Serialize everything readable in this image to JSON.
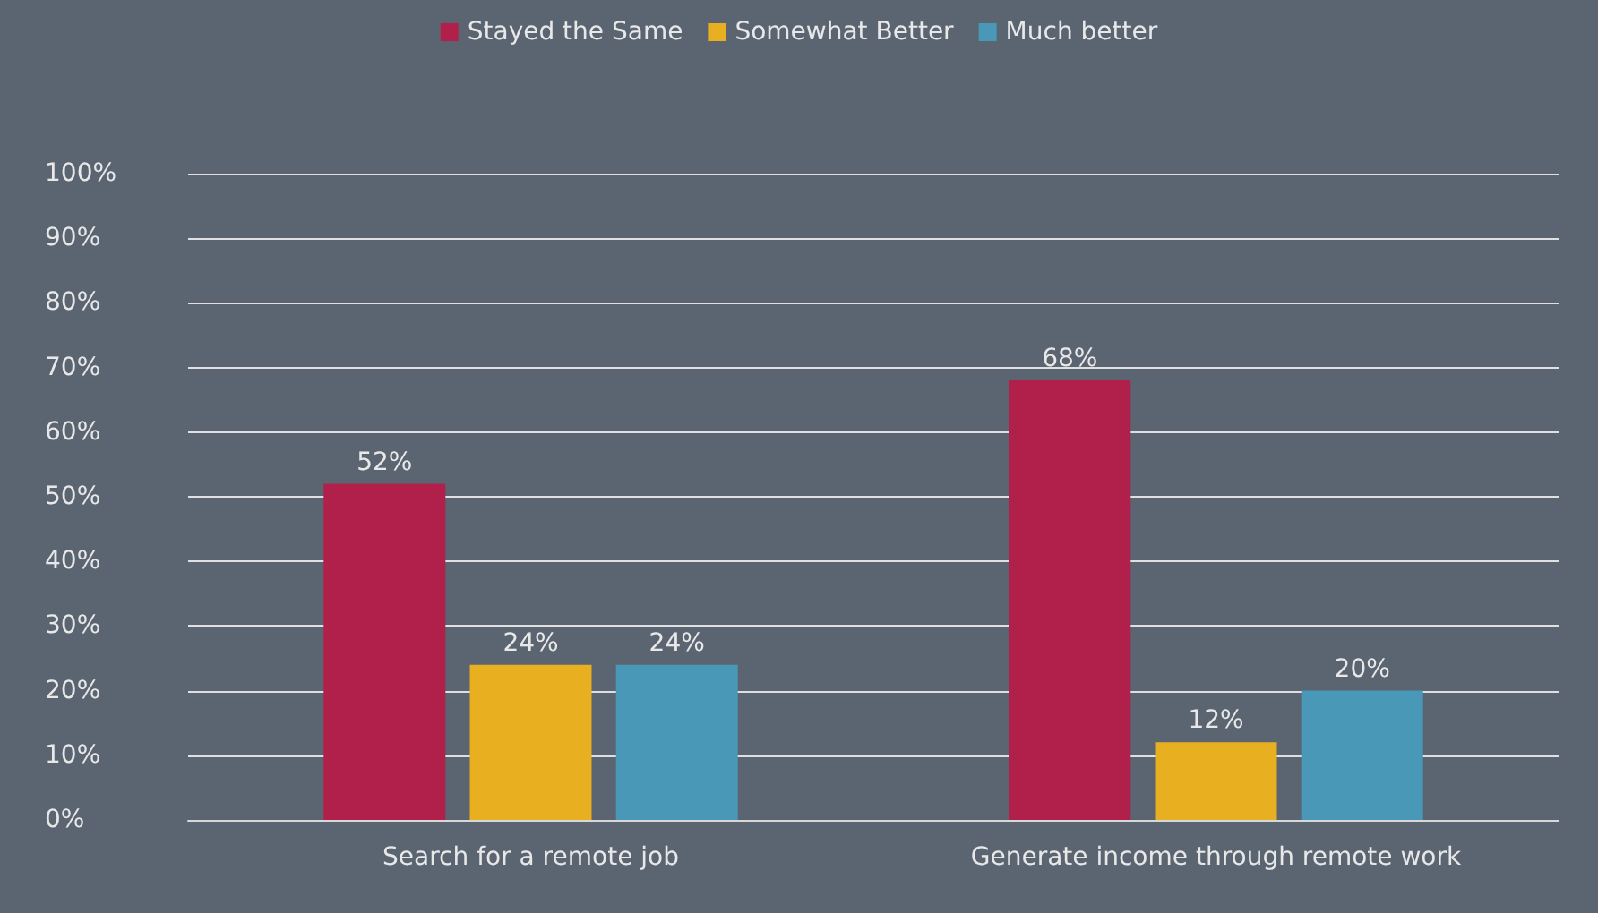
{
  "chart_data": {
    "type": "bar",
    "categories": [
      "Search for a remote job",
      "Generate income through remote work"
    ],
    "series": [
      {
        "name": "Stayed the Same",
        "color": "#b0204a",
        "values": [
          52,
          68
        ],
        "value_labels": [
          "52%",
          "68%"
        ]
      },
      {
        "name": "Somewhat Better",
        "color": "#e8b020",
        "values": [
          24,
          12
        ],
        "value_labels": [
          "24%",
          "12%"
        ]
      },
      {
        "name": "Much better",
        "color": "#4a98b8",
        "values": [
          24,
          20
        ],
        "value_labels": [
          "24%",
          "20%"
        ]
      }
    ],
    "ylim": [
      0,
      100
    ],
    "yticks": [
      {
        "value": 0,
        "label": "0%"
      },
      {
        "value": 10,
        "label": "10%"
      },
      {
        "value": 20,
        "label": "20%"
      },
      {
        "value": 30,
        "label": "30%"
      },
      {
        "value": 40,
        "label": "40%"
      },
      {
        "value": 50,
        "label": "50%"
      },
      {
        "value": 60,
        "label": "60%"
      },
      {
        "value": 70,
        "label": "70%"
      },
      {
        "value": 80,
        "label": "80%"
      },
      {
        "value": 90,
        "label": "90%"
      },
      {
        "value": 100,
        "label": "100%"
      }
    ],
    "grid": "y",
    "legend": "top"
  }
}
